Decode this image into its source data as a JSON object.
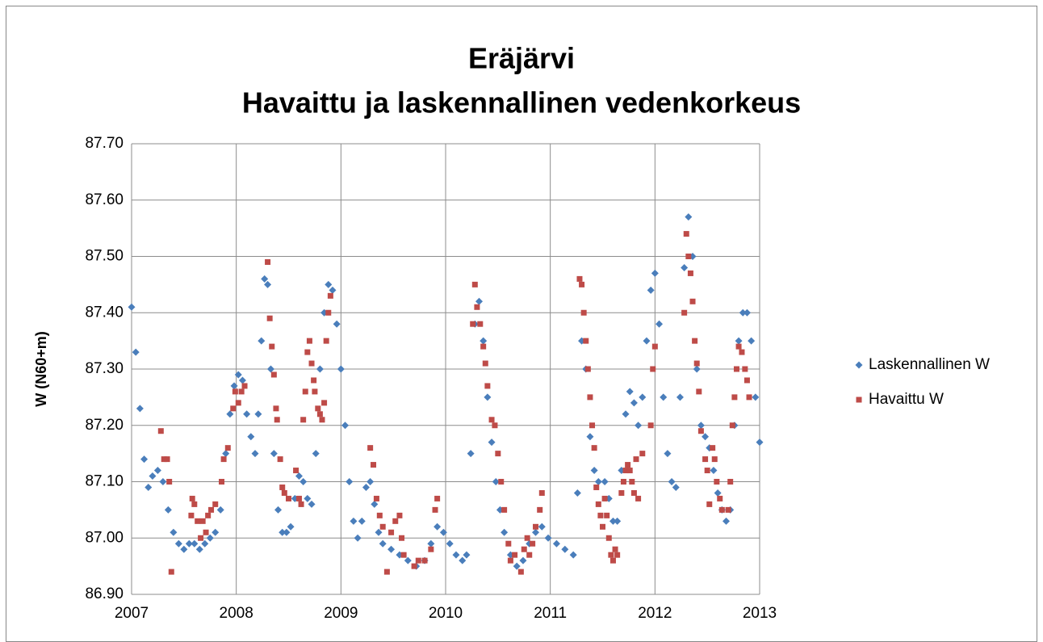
{
  "chart_data": {
    "type": "scatter",
    "title": [
      "Eräjärvi",
      "Havaittu ja laskennallinen vedenkorkeus"
    ],
    "y_label": "W (N60+m)",
    "xlim": [
      2007,
      2013
    ],
    "xticks": [
      2007,
      2008,
      2009,
      2010,
      2011,
      2012,
      2013
    ],
    "ylim": [
      86.9,
      87.7
    ],
    "yticks": [
      {
        "value": 86.9,
        "label": "86.90"
      },
      {
        "value": 87.0,
        "label": "87.00"
      },
      {
        "value": 87.1,
        "label": "87.10"
      },
      {
        "value": 87.2,
        "label": "87.20"
      },
      {
        "value": 87.3,
        "label": "87.30"
      },
      {
        "value": 87.4,
        "label": "87.40"
      },
      {
        "value": 87.5,
        "label": "87.50"
      },
      {
        "value": 87.6,
        "label": "87.60"
      },
      {
        "value": 87.7,
        "label": "87.70"
      }
    ],
    "grid": true,
    "legend": "right",
    "series": [
      {
        "name": "Laskennallinen W",
        "color": "#4a7ebb",
        "marker": "diamond",
        "x": [
          2007.0,
          2007.04,
          2007.08,
          2007.12,
          2007.16,
          2007.2,
          2007.25,
          2007.3,
          2007.35,
          2007.4,
          2007.45,
          2007.5,
          2007.55,
          2007.6,
          2007.65,
          2007.7,
          2007.75,
          2007.8,
          2007.85,
          2007.9,
          2007.94,
          2007.98,
          2008.02,
          2008.06,
          2008.1,
          2008.14,
          2008.18,
          2008.21,
          2008.24,
          2008.27,
          2008.3,
          2008.33,
          2008.36,
          2008.4,
          2008.44,
          2008.48,
          2008.52,
          2008.56,
          2008.6,
          2008.64,
          2008.68,
          2008.72,
          2008.76,
          2008.8,
          2008.84,
          2008.88,
          2008.92,
          2008.96,
          2009.0,
          2009.04,
          2009.08,
          2009.12,
          2009.16,
          2009.2,
          2009.24,
          2009.28,
          2009.32,
          2009.36,
          2009.4,
          2009.48,
          2009.56,
          2009.64,
          2009.72,
          2009.8,
          2009.86,
          2009.92,
          2009.98,
          2010.04,
          2010.1,
          2010.16,
          2010.2,
          2010.24,
          2010.28,
          2010.32,
          2010.36,
          2010.4,
          2010.44,
          2010.48,
          2010.52,
          2010.56,
          2010.62,
          2010.68,
          2010.74,
          2010.8,
          2010.86,
          2010.92,
          2010.98,
          2011.06,
          2011.14,
          2011.22,
          2011.26,
          2011.3,
          2011.34,
          2011.38,
          2011.42,
          2011.46,
          2011.52,
          2011.56,
          2011.6,
          2011.64,
          2011.68,
          2011.72,
          2011.76,
          2011.8,
          2011.84,
          2011.88,
          2011.92,
          2011.96,
          2012.0,
          2012.04,
          2012.08,
          2012.12,
          2012.16,
          2012.2,
          2012.24,
          2012.28,
          2012.32,
          2012.36,
          2012.4,
          2012.44,
          2012.48,
          2012.52,
          2012.56,
          2012.6,
          2012.64,
          2012.68,
          2012.72,
          2012.76,
          2012.8,
          2012.84,
          2012.88,
          2012.92,
          2012.96,
          2013.0
        ],
        "values": [
          87.41,
          87.33,
          87.23,
          87.14,
          87.09,
          87.11,
          87.12,
          87.1,
          87.05,
          87.01,
          86.99,
          86.98,
          86.99,
          86.99,
          86.98,
          86.99,
          87.0,
          87.01,
          87.05,
          87.15,
          87.22,
          87.27,
          87.29,
          87.28,
          87.22,
          87.18,
          87.15,
          87.22,
          87.35,
          87.46,
          87.45,
          87.3,
          87.15,
          87.05,
          87.01,
          87.01,
          87.02,
          87.07,
          87.11,
          87.1,
          87.07,
          87.06,
          87.15,
          87.3,
          87.4,
          87.45,
          87.44,
          87.38,
          87.3,
          87.2,
          87.1,
          87.03,
          87.0,
          87.03,
          87.09,
          87.1,
          87.06,
          87.01,
          86.99,
          86.98,
          86.97,
          86.96,
          86.95,
          86.96,
          86.99,
          87.02,
          87.01,
          86.99,
          86.97,
          86.96,
          86.97,
          87.15,
          87.38,
          87.42,
          87.35,
          87.25,
          87.17,
          87.1,
          87.05,
          87.01,
          86.97,
          86.95,
          86.96,
          86.99,
          87.01,
          87.02,
          87.0,
          86.99,
          86.98,
          86.97,
          87.08,
          87.35,
          87.3,
          87.18,
          87.12,
          87.1,
          87.1,
          87.07,
          87.03,
          87.03,
          87.12,
          87.22,
          87.26,
          87.24,
          87.2,
          87.25,
          87.35,
          87.44,
          87.47,
          87.38,
          87.25,
          87.15,
          87.1,
          87.09,
          87.25,
          87.48,
          87.57,
          87.5,
          87.3,
          87.2,
          87.18,
          87.16,
          87.12,
          87.08,
          87.05,
          87.03,
          87.05,
          87.2,
          87.35,
          87.4,
          87.4,
          87.35,
          87.25,
          87.17
        ]
      },
      {
        "name": "Havaittu W",
        "color": "#be4b48",
        "marker": "square",
        "x": [
          2007.28,
          2007.31,
          2007.34,
          2007.36,
          2007.38,
          2007.58,
          2007.6,
          2007.57,
          2007.63,
          2007.66,
          2007.68,
          2007.71,
          2007.73,
          2007.76,
          2007.8,
          2007.86,
          2007.88,
          2007.92,
          2007.97,
          2007.99,
          2008.02,
          2008.05,
          2008.08,
          2008.3,
          2008.32,
          2008.34,
          2008.36,
          2008.38,
          2008.39,
          2008.42,
          2008.44,
          2008.46,
          2008.5,
          2008.57,
          2008.6,
          2008.62,
          2008.64,
          2008.66,
          2008.68,
          2008.7,
          2008.72,
          2008.74,
          2008.75,
          2008.78,
          2008.8,
          2008.82,
          2008.84,
          2008.86,
          2008.88,
          2008.9,
          2009.28,
          2009.31,
          2009.34,
          2009.37,
          2009.4,
          2009.44,
          2009.48,
          2009.52,
          2009.56,
          2009.58,
          2009.6,
          2009.7,
          2009.74,
          2009.8,
          2009.86,
          2009.9,
          2009.92,
          2010.26,
          2010.28,
          2010.3,
          2010.33,
          2010.36,
          2010.38,
          2010.4,
          2010.44,
          2010.47,
          2010.5,
          2010.53,
          2010.56,
          2010.6,
          2010.62,
          2010.66,
          2010.72,
          2010.75,
          2010.78,
          2010.8,
          2010.83,
          2010.86,
          2010.9,
          2010.92,
          2011.28,
          2011.3,
          2011.32,
          2011.34,
          2011.36,
          2011.38,
          2011.4,
          2011.42,
          2011.44,
          2011.46,
          2011.48,
          2011.5,
          2011.52,
          2011.54,
          2011.56,
          2011.58,
          2011.6,
          2011.62,
          2011.64,
          2011.68,
          2011.7,
          2011.72,
          2011.74,
          2011.76,
          2011.78,
          2011.8,
          2011.82,
          2011.84,
          2011.88,
          2011.96,
          2011.98,
          2012.0,
          2012.28,
          2012.3,
          2012.32,
          2012.34,
          2012.36,
          2012.38,
          2012.4,
          2012.42,
          2012.44,
          2012.48,
          2012.5,
          2012.52,
          2012.55,
          2012.57,
          2012.59,
          2012.62,
          2012.64,
          2012.7,
          2012.72,
          2012.74,
          2012.76,
          2012.78,
          2012.8,
          2012.83,
          2012.86,
          2012.88,
          2012.9
        ],
        "values": [
          87.19,
          87.14,
          87.14,
          87.1,
          86.94,
          87.07,
          87.06,
          87.04,
          87.03,
          87.0,
          87.03,
          87.01,
          87.04,
          87.05,
          87.06,
          87.1,
          87.14,
          87.16,
          87.23,
          87.26,
          87.24,
          87.26,
          87.27,
          87.49,
          87.39,
          87.34,
          87.29,
          87.23,
          87.21,
          87.14,
          87.09,
          87.08,
          87.07,
          87.12,
          87.07,
          87.06,
          87.21,
          87.26,
          87.33,
          87.35,
          87.31,
          87.28,
          87.26,
          87.23,
          87.22,
          87.21,
          87.24,
          87.35,
          87.4,
          87.43,
          87.16,
          87.13,
          87.07,
          87.04,
          87.02,
          86.94,
          87.01,
          87.03,
          87.04,
          87.0,
          86.97,
          86.95,
          86.96,
          86.96,
          86.98,
          87.05,
          87.07,
          87.38,
          87.45,
          87.41,
          87.38,
          87.34,
          87.31,
          87.27,
          87.21,
          87.2,
          87.15,
          87.1,
          87.05,
          86.99,
          86.96,
          86.97,
          86.94,
          86.98,
          87.0,
          86.97,
          86.99,
          87.02,
          87.05,
          87.08,
          87.46,
          87.45,
          87.4,
          87.35,
          87.3,
          87.25,
          87.2,
          87.16,
          87.09,
          87.06,
          87.04,
          87.02,
          87.07,
          87.04,
          87.0,
          86.97,
          86.96,
          86.98,
          86.97,
          87.08,
          87.1,
          87.12,
          87.13,
          87.12,
          87.1,
          87.08,
          87.14,
          87.07,
          87.15,
          87.2,
          87.3,
          87.34,
          87.4,
          87.54,
          87.5,
          87.47,
          87.42,
          87.35,
          87.31,
          87.26,
          87.19,
          87.14,
          87.12,
          87.06,
          87.16,
          87.14,
          87.1,
          87.07,
          87.05,
          87.05,
          87.1,
          87.2,
          87.25,
          87.3,
          87.34,
          87.33,
          87.3,
          87.28,
          87.25
        ]
      }
    ]
  }
}
